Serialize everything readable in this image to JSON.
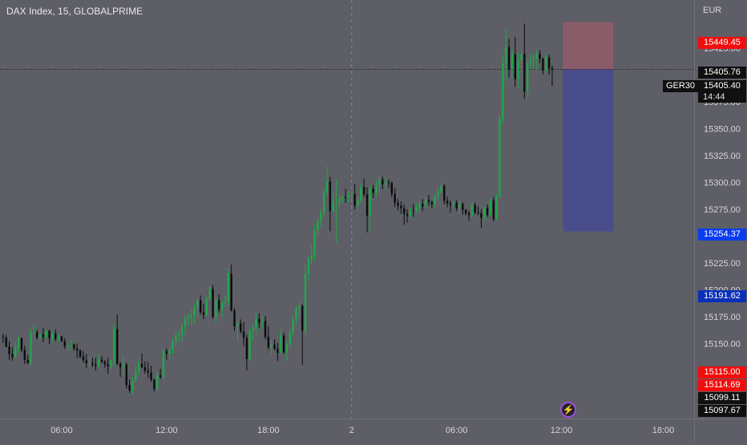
{
  "header": {
    "title": "DAX Index, 15, GLOBALPRIME"
  },
  "axis": {
    "currency": "EUR"
  },
  "price_tags": {
    "stop_loss": "15449.45",
    "open": "15405.76",
    "symbol": "GER30",
    "current": "15405.40",
    "countdown": "14:44",
    "take_profit": "15254.37",
    "level_blue": "15191.62",
    "level_red_1": "15115.00",
    "level_red_2": "15114.69",
    "level_dark_1": "15099.11",
    "level_dark_2": "15097.67"
  },
  "colors": {
    "up": "#1fa84a",
    "down": "#0b0b0b",
    "background": "#5d5e66",
    "risk_zone": "#8a5c6a",
    "reward_zone": "#4a4d8c"
  },
  "icons": {
    "bolt": "lightning-icon"
  },
  "chart_data": {
    "type": "candlestick",
    "title": "DAX Index, 15, GLOBALPRIME",
    "yticks": [
      15425,
      15400,
      15375,
      15350,
      15325,
      15300,
      15275,
      15250,
      15225,
      15200,
      15175,
      15150,
      15125
    ],
    "xticks": [
      {
        "label": "06:00",
        "bar": 19
      },
      {
        "label": "12:00",
        "bar": 53
      },
      {
        "label": "18:00",
        "bar": 86
      },
      {
        "label": "2",
        "bar": 113
      },
      {
        "label": "06:00",
        "bar": 147
      },
      {
        "label": "12:00",
        "bar": 181
      },
      {
        "label": "18:00",
        "bar": 214
      }
    ],
    "ylim": [
      15080,
      15470
    ],
    "xlim": [
      -1,
      224
    ],
    "vertical_marker_bar": 113,
    "current_price": 15405.4,
    "position": {
      "entry": 15405.4,
      "stop": 15449.45,
      "target": 15254.37,
      "start_bar": 181.5,
      "end_bar": 197.8
    },
    "ohlc": [
      [
        15156.0,
        15159.0,
        15150.5,
        15155.5
      ],
      [
        15155.5,
        15158.0,
        15146.3,
        15146.8
      ],
      [
        15146.8,
        15152.0,
        15134.4,
        15140.1
      ],
      [
        15140.1,
        15146.6,
        15134.0,
        15137.3
      ],
      [
        15137.3,
        15151.2,
        15136.6,
        15146.1
      ],
      [
        15146.1,
        15157.0,
        15140.7,
        15155.0
      ],
      [
        15155.0,
        15155.2,
        15141.8,
        15143.9
      ],
      [
        15143.9,
        15148.1,
        15131.0,
        15134.6
      ],
      [
        15134.6,
        15139.4,
        15130.8,
        15131.8
      ],
      [
        15131.8,
        15164.0,
        15129.5,
        15160.0
      ],
      [
        15160.0,
        15166.8,
        15158.2,
        15160.5
      ],
      [
        15160.5,
        15162.8,
        15153.9,
        15155.4
      ],
      [
        15155.4,
        15159.6,
        15152.1,
        15158.5
      ],
      [
        15158.5,
        15164.3,
        15151.1,
        15156.0
      ],
      [
        15156.0,
        15162.6,
        15154.4,
        15161.8
      ],
      [
        15161.8,
        15162.7,
        15149.4,
        15154.6
      ],
      [
        15154.6,
        15161.1,
        15150.8,
        15159.3
      ],
      [
        15159.3,
        15162.9,
        15152.1,
        15154.2
      ],
      [
        15154.2,
        15158.5,
        15151.7,
        15156.6
      ],
      [
        15156.6,
        15157.0,
        15151.5,
        15151.9
      ],
      [
        15151.9,
        15154.9,
        15144.9,
        15147.4
      ],
      [
        15147.4,
        15151.3,
        15143.5,
        15148.3
      ],
      [
        15148.3,
        15153.4,
        15143.4,
        15149.2
      ],
      [
        15149.2,
        15149.9,
        15143.3,
        15145.3
      ],
      [
        15145.3,
        15149.6,
        15136.1,
        15143.4
      ],
      [
        15143.4,
        15144.6,
        15136.2,
        15137.8
      ],
      [
        15137.8,
        15142.8,
        15132.1,
        15134.3
      ],
      [
        15134.3,
        15139.9,
        15127.2,
        15131.3
      ],
      [
        15131.3,
        15137.1,
        15128.4,
        15131.7
      ],
      [
        15131.7,
        15136.4,
        15127.9,
        15130.2
      ],
      [
        15130.2,
        15136.6,
        15124.8,
        15129.0
      ],
      [
        15129.0,
        15140.2,
        15127.4,
        15134.8
      ],
      [
        15134.8,
        15138.5,
        15131.2,
        15132.9
      ],
      [
        15132.9,
        15134.6,
        15127.4,
        15130.7
      ],
      [
        15130.7,
        15136.5,
        15121.6,
        15128.7
      ],
      [
        15128.7,
        15134.8,
        15125.5,
        15134.2
      ],
      [
        15134.2,
        15168.0,
        15128.3,
        15163.5
      ],
      [
        15163.5,
        15177.0,
        15130.0,
        15131.0
      ],
      [
        15131.0,
        15132.7,
        15118.9,
        15127.8
      ],
      [
        15127.8,
        15139.7,
        15119.5,
        15130.3
      ],
      [
        15130.3,
        15132.0,
        15108.0,
        15111.2
      ],
      [
        15111.2,
        15116.6,
        15104.1,
        15106.2
      ],
      [
        15106.2,
        15118.7,
        15102.3,
        15115.3
      ],
      [
        15115.3,
        15128.7,
        15113.9,
        15124.4
      ],
      [
        15124.4,
        15135.7,
        15120.9,
        15131.0
      ],
      [
        15131.0,
        15140.6,
        15126.9,
        15127.8
      ],
      [
        15127.8,
        15133.3,
        15121.9,
        15124.6
      ],
      [
        15124.6,
        15132.8,
        15117.9,
        15123.0
      ],
      [
        15123.0,
        15129.2,
        15114.2,
        15116.1
      ],
      [
        15116.1,
        15117.0,
        15105.2,
        15107.6
      ],
      [
        15107.6,
        15123.0,
        15106.1,
        15120.3
      ],
      [
        15120.3,
        15126.3,
        15116.9,
        15118.4
      ],
      [
        15118.4,
        15145.0,
        15115.8,
        15143.0
      ],
      [
        15143.0,
        15145.5,
        15134.9,
        15140.5
      ],
      [
        15140.5,
        15146.9,
        15135.4,
        15144.1
      ],
      [
        15144.1,
        15155.1,
        15139.6,
        15152.7
      ],
      [
        15152.7,
        15161.0,
        15147.2,
        15156.7
      ],
      [
        15156.7,
        15160.9,
        15151.8,
        15158.1
      ],
      [
        15158.1,
        15168.4,
        15151.2,
        15165.4
      ],
      [
        15165.4,
        15176.7,
        15158.1,
        15173.4
      ],
      [
        15173.4,
        15178.6,
        15166.2,
        15174.8
      ],
      [
        15174.8,
        15181.6,
        15168.0,
        15176.2
      ],
      [
        15176.2,
        15186.2,
        15168.4,
        15183.4
      ],
      [
        15183.4,
        15192.2,
        15174.5,
        15190.2
      ],
      [
        15190.2,
        15194.7,
        15177.1,
        15179.1
      ],
      [
        15179.1,
        15186.7,
        15172.4,
        15176.9
      ],
      [
        15176.9,
        15193.4,
        15175.4,
        15191.1
      ],
      [
        15191.1,
        15204.0,
        15189.9,
        15201.0
      ],
      [
        15201.0,
        15204.6,
        15172.9,
        15175.0
      ],
      [
        15175.0,
        15192.8,
        15168.9,
        15190.6
      ],
      [
        15190.6,
        15195.7,
        15178.8,
        15181.8
      ],
      [
        15181.8,
        15190.0,
        15175.0,
        15187.8
      ],
      [
        15187.8,
        15194.6,
        15184.5,
        15188.5
      ],
      [
        15188.5,
        15220.0,
        15184.4,
        15215.0
      ],
      [
        15215.0,
        15223.6,
        15179.8,
        15180.6
      ],
      [
        15180.6,
        15183.1,
        15161.6,
        15166.1
      ],
      [
        15166.1,
        15173.4,
        15152.0,
        15168.5
      ],
      [
        15168.5,
        15172.3,
        15159.1,
        15161.1
      ],
      [
        15161.1,
        15169.8,
        15147.6,
        15155.2
      ],
      [
        15155.2,
        15158.2,
        15124.9,
        15135.4
      ],
      [
        15135.4,
        15163.4,
        15133.8,
        15162.0
      ],
      [
        15162.0,
        15169.2,
        15152.4,
        15164.5
      ],
      [
        15164.5,
        15178.3,
        15159.6,
        15173.0
      ],
      [
        15173.0,
        15178.1,
        15164.4,
        15169.0
      ],
      [
        15169.0,
        15175.7,
        15163.7,
        15171.2
      ],
      [
        15171.2,
        15175.4,
        15153.7,
        15156.0
      ],
      [
        15156.0,
        15165.9,
        15144.3,
        15146.3
      ],
      [
        15146.3,
        15153.3,
        15139.9,
        15149.0
      ],
      [
        15149.0,
        15154.0,
        15143.8,
        15145.1
      ],
      [
        15145.1,
        15150.5,
        15133.8,
        15141.2
      ],
      [
        15141.2,
        15163.1,
        15140.0,
        15157.4
      ],
      [
        15157.4,
        15160.3,
        15140.3,
        15141.7
      ],
      [
        15141.7,
        15152.0,
        15133.1,
        15148.7
      ],
      [
        15148.7,
        15163.4,
        15145.8,
        15160.2
      ],
      [
        15160.2,
        15175.4,
        15157.4,
        15172.5
      ],
      [
        15172.5,
        15185.2,
        15167.6,
        15182.8
      ],
      [
        15182.8,
        15189.2,
        15174.4,
        15185.0
      ],
      [
        15185.0,
        15186.5,
        15130.0,
        15161.9
      ],
      [
        15161.9,
        15223.7,
        15158.1,
        15214.9
      ],
      [
        15214.9,
        15231.1,
        15208.1,
        15228.9
      ],
      [
        15228.9,
        15242.4,
        15223.5,
        15232.2
      ],
      [
        15232.2,
        15260.3,
        15226.3,
        15255.6
      ],
      [
        15255.6,
        15266.8,
        15249.6,
        15263.7
      ],
      [
        15263.7,
        15275.0,
        15258.9,
        15271.5
      ],
      [
        15271.5,
        15295.1,
        15267.9,
        15290.4
      ],
      [
        15290.4,
        15315.2,
        15287.5,
        15300.7
      ],
      [
        15300.7,
        15305.4,
        15254.5,
        15273.3
      ],
      [
        15273.3,
        15289.9,
        15272.5,
        15282.0
      ],
      [
        15282.0,
        15303.2,
        15243.9,
        15282.0
      ],
      [
        15282.0,
        15288.5,
        15275.3,
        15284.9
      ],
      [
        15284.9,
        15287.7,
        15279.9,
        15286.4
      ],
      [
        15286.4,
        15294.0,
        15280.9,
        15285.9
      ],
      [
        15285.9,
        15292.3,
        15281.5,
        15288.5
      ],
      [
        15288.5,
        15292.2,
        15284.2,
        15289.1
      ],
      [
        15289.1,
        15298.2,
        15275.2,
        15278.4
      ],
      [
        15278.4,
        15286.3,
        15272.9,
        15283.2
      ],
      [
        15283.2,
        15299.6,
        15281.2,
        15295.7
      ],
      [
        15295.7,
        15303.7,
        15286.3,
        15289.0
      ],
      [
        15289.0,
        15295.6,
        15253.5,
        15269.1
      ],
      [
        15269.1,
        15297.8,
        15254.3,
        15294.1
      ],
      [
        15294.1,
        15297.6,
        15285.7,
        15290.4
      ],
      [
        15290.4,
        15301.5,
        15286.3,
        15297.4
      ],
      [
        15297.4,
        15306.5,
        15289.1,
        15302.9
      ],
      [
        15302.9,
        15305.5,
        15293.8,
        15298.3
      ],
      [
        15298.3,
        15305.6,
        15292.4,
        15300.1
      ],
      [
        15300.1,
        15302.7,
        15295.1,
        15299.5
      ],
      [
        15299.5,
        15300.8,
        15286.3,
        15289.3
      ],
      [
        15289.3,
        15294.4,
        15276.9,
        15281.1
      ],
      [
        15281.1,
        15284.5,
        15273.9,
        15278.3
      ],
      [
        15278.3,
        15282.4,
        15270.6,
        15276.0
      ],
      [
        15276.0,
        15279.7,
        15260.6,
        15270.7
      ],
      [
        15270.7,
        15275.0,
        15262.4,
        15269.3
      ],
      [
        15269.3,
        15276.6,
        15265.9,
        15274.0
      ],
      [
        15274.0,
        15280.0,
        15267.9,
        15273.4
      ],
      [
        15273.4,
        15280.3,
        15271.4,
        15276.6
      ],
      [
        15276.6,
        15283.0,
        15271.7,
        15280.1
      ],
      [
        15280.1,
        15284.5,
        15273.3,
        15277.6
      ],
      [
        15277.6,
        15286.7,
        15275.9,
        15283.5
      ],
      [
        15283.5,
        15288.4,
        15278.4,
        15281.8
      ],
      [
        15281.8,
        15283.1,
        15276.2,
        15279.7
      ],
      [
        15279.7,
        15289.0,
        15275.8,
        15288.0
      ],
      [
        15288.0,
        15294.4,
        15283.2,
        15291.6
      ],
      [
        15291.6,
        15299.9,
        15289.9,
        15296.7
      ],
      [
        15296.7,
        15298.4,
        15279.6,
        15282.8
      ],
      [
        15282.8,
        15286.6,
        15276.8,
        15280.6
      ],
      [
        15280.6,
        15283.0,
        15271.8,
        15279.1
      ],
      [
        15279.1,
        15284.7,
        15275.4,
        15281.2
      ],
      [
        15281.2,
        15283.4,
        15273.4,
        15275.9
      ],
      [
        15275.9,
        15283.4,
        15270.6,
        15280.2
      ],
      [
        15280.2,
        15281.3,
        15270.1,
        15274.6
      ],
      [
        15274.6,
        15275.1,
        15269.2,
        15271.2
      ],
      [
        15271.2,
        15273.7,
        15264.2,
        15269.7
      ],
      [
        15269.7,
        15281.6,
        15266.7,
        15279.0
      ],
      [
        15279.0,
        15281.3,
        15270.5,
        15272.1
      ],
      [
        15272.1,
        15277.6,
        15269.7,
        15271.4
      ],
      [
        15271.4,
        15275.2,
        15257.4,
        15267.1
      ],
      [
        15267.1,
        15277.3,
        15263.5,
        15276.3
      ],
      [
        15276.3,
        15279.4,
        15268.0,
        15269.7
      ],
      [
        15269.7,
        15286.4,
        15268.9,
        15283.3
      ],
      [
        15283.3,
        15286.5,
        15263.8,
        15265.6
      ],
      [
        15265.6,
        15290.0,
        15264.6,
        15286.7
      ],
      [
        15286.7,
        15362.9,
        15285.6,
        15359.5
      ],
      [
        15359.5,
        15419.1,
        15354.2,
        15411.5
      ],
      [
        15411.5,
        15444.0,
        15393.7,
        15426.0
      ],
      [
        15426.0,
        15433.6,
        15398.0,
        15405.6
      ],
      [
        15405.6,
        15423.8,
        15396.8,
        15419.5
      ],
      [
        15419.5,
        15435.5,
        15389.1,
        15396.3
      ],
      [
        15396.3,
        15421.3,
        15387.3,
        15413.9
      ],
      [
        15413.9,
        15423.7,
        15402.1,
        15419.7
      ],
      [
        15419.7,
        15448.0,
        15378.0,
        15384.6
      ],
      [
        15384.6,
        15416.3,
        15380.0,
        15411.3
      ],
      [
        15411.3,
        15419.9,
        15405.3,
        15413.4
      ],
      [
        15413.4,
        15420.6,
        15406.0,
        15414.8
      ],
      [
        15414.8,
        15423.6,
        15404.8,
        15419.9
      ],
      [
        15419.9,
        15423.1,
        15411.1,
        15415.4
      ],
      [
        15415.4,
        15416.1,
        15400.8,
        15404.6
      ],
      [
        15404.6,
        15420.6,
        15401.5,
        15416.5
      ],
      [
        15416.5,
        15418.9,
        15400.4,
        15406.6
      ],
      [
        15406.6,
        15408.8,
        15390.0,
        15405.4
      ]
    ]
  }
}
